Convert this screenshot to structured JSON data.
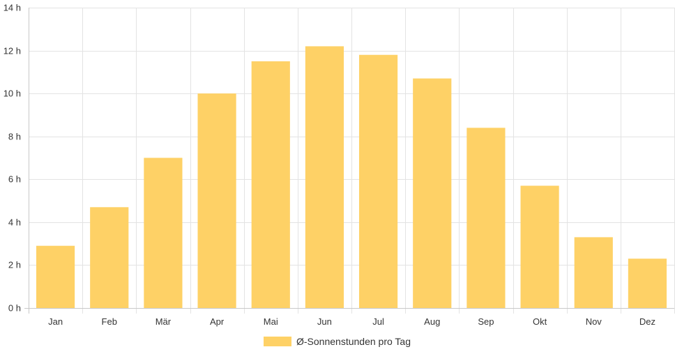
{
  "chart_data": {
    "type": "bar",
    "categories": [
      "Jan",
      "Feb",
      "Mär",
      "Apr",
      "Mai",
      "Jun",
      "Jul",
      "Aug",
      "Sep",
      "Okt",
      "Nov",
      "Dez"
    ],
    "series": [
      {
        "name": "Ø-Sonnenstunden pro Tag",
        "values": [
          2.9,
          4.7,
          7.0,
          10.0,
          11.5,
          12.2,
          11.8,
          10.7,
          8.4,
          5.7,
          3.3,
          2.3
        ],
        "color": "#fed166"
      }
    ],
    "y_ticks": [
      "0 h",
      "2 h",
      "4 h",
      "6 h",
      "8 h",
      "10 h",
      "12 h",
      "14 h"
    ],
    "ylim": [
      0,
      14
    ],
    "grid": true,
    "legend_position": "bottom"
  }
}
